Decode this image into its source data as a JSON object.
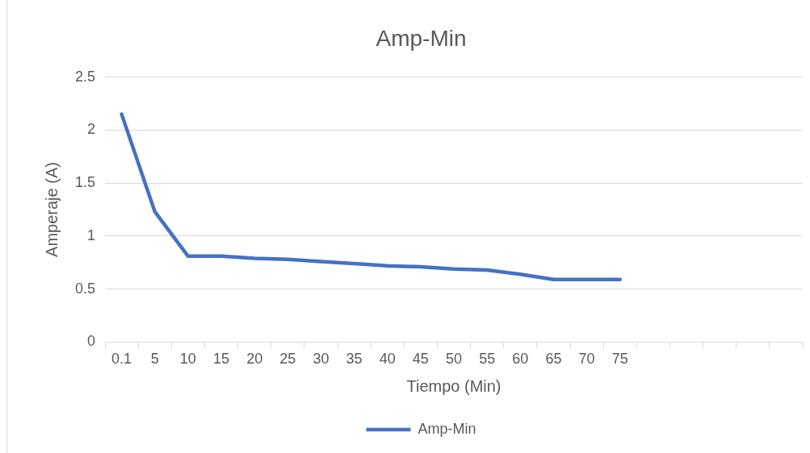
{
  "chart_data": {
    "type": "line",
    "title": "Amp-Min",
    "xlabel": "Tiempo (Min)",
    "ylabel": "Amperaje (A)",
    "categories": [
      "0.1",
      "5",
      "10",
      "15",
      "20",
      "25",
      "30",
      "35",
      "40",
      "45",
      "50",
      "55",
      "60",
      "65",
      "70",
      "75",
      null,
      null,
      null,
      null,
      null
    ],
    "series": [
      {
        "name": "Amp-Min",
        "color": "#4472c4",
        "values": [
          2.15,
          1.23,
          0.81,
          0.81,
          0.79,
          0.78,
          0.76,
          0.74,
          0.72,
          0.71,
          0.69,
          0.68,
          0.64,
          0.59,
          0.59,
          0.59,
          null,
          null,
          null,
          null,
          null
        ]
      }
    ],
    "ylim": [
      0,
      2.5
    ],
    "yticks": [
      0,
      0.5,
      1,
      1.5,
      2,
      2.5
    ],
    "grid": "y",
    "legend": "bottom",
    "marker": "none",
    "line_style": "solid"
  }
}
